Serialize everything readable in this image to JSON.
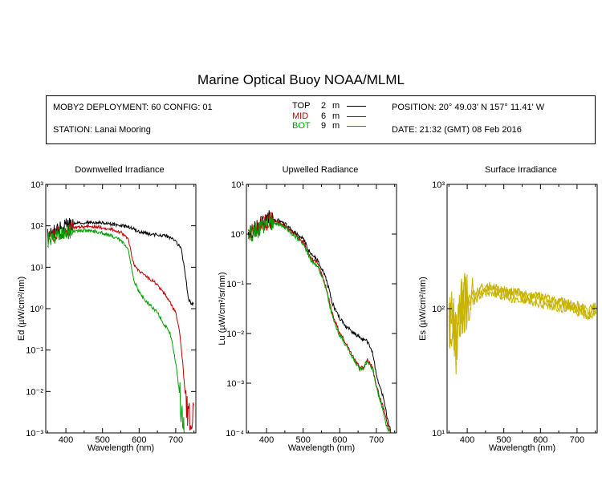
{
  "header": {
    "title": "Marine Optical Buoy NOAA/MLML",
    "deployment": "MOBY2 DEPLOYMENT: 60 CONFIG: 01",
    "station": "STATION: Lanai Mooring",
    "position": "POSITION: 20° 49.03' N   157° 11.41' W",
    "date": "DATE: 21:32 (GMT) 08 Feb 2016",
    "legend": [
      {
        "name": "TOP",
        "depth": "2",
        "unit": "m",
        "color": "#000000"
      },
      {
        "name": "MID",
        "depth": "6",
        "unit": "m",
        "color": "#c00000"
      },
      {
        "name": "BOT",
        "depth": "9",
        "unit": "m",
        "color": "#00a000"
      }
    ]
  },
  "chart_data": [
    {
      "type": "line",
      "title": "Downwelled Irradiance",
      "xlabel": "Wavelength (nm)",
      "ylabel": "Ed (µW/cm²/nm)",
      "yscale": "log",
      "xlim": [
        345,
        755
      ],
      "ylim": [
        0.001,
        1000
      ],
      "xticks": [
        400,
        500,
        600,
        700
      ],
      "ytick_labels": [
        "10⁻³",
        "10⁻²",
        "10⁻¹",
        "10⁰",
        "10¹",
        "10²",
        "10³"
      ],
      "series": [
        {
          "name": "TOP",
          "color": "#000000",
          "x": [
            350,
            370,
            400,
            430,
            460,
            490,
            520,
            550,
            580,
            600,
            620,
            650,
            680,
            700,
            715,
            725,
            735,
            745,
            750
          ],
          "y": [
            60,
            75,
            100,
            115,
            120,
            120,
            112,
            102,
            90,
            72,
            65,
            60,
            55,
            42,
            28,
            8,
            1.6,
            1.3,
            1.3
          ]
        },
        {
          "name": "MID",
          "color": "#c00000",
          "x": [
            350,
            370,
            400,
            430,
            460,
            490,
            520,
            550,
            570,
            585,
            600,
            620,
            650,
            670,
            685,
            700,
            710,
            720,
            730,
            740,
            750
          ],
          "y": [
            50,
            62,
            80,
            92,
            98,
            93,
            85,
            70,
            48,
            12,
            8,
            6,
            3.8,
            2.2,
            1.4,
            0.8,
            0.3,
            0.04,
            0.003,
            0.002,
            0.002
          ]
        },
        {
          "name": "BOT",
          "color": "#00a000",
          "x": [
            350,
            370,
            400,
            430,
            460,
            490,
            520,
            550,
            570,
            585,
            600,
            620,
            650,
            670,
            685,
            700,
            710,
            720,
            725
          ],
          "y": [
            45,
            55,
            68,
            75,
            78,
            70,
            60,
            45,
            28,
            5,
            2.5,
            1.5,
            0.8,
            0.4,
            0.25,
            0.05,
            0.01,
            0.002,
            0.001
          ]
        }
      ]
    },
    {
      "type": "line",
      "title": "Upwelled Radiance",
      "xlabel": "Wavelength (nm)",
      "ylabel": "Lu (µW/cm²/sr/nm)",
      "yscale": "log",
      "xlim": [
        345,
        755
      ],
      "ylim": [
        0.0001,
        10
      ],
      "xticks": [
        400,
        500,
        600,
        700
      ],
      "ytick_labels": [
        "10⁻⁴",
        "10⁻³",
        "10⁻²",
        "10⁻¹",
        "10⁰",
        "10¹"
      ],
      "series": [
        {
          "name": "TOP",
          "color": "#000000",
          "x": [
            350,
            370,
            390,
            405,
            420,
            440,
            460,
            480,
            500,
            520,
            540,
            560,
            580,
            600,
            620,
            640,
            660,
            675,
            690,
            700,
            710,
            720,
            730,
            740
          ],
          "y": [
            1.1,
            1.3,
            1.6,
            2.1,
            2.0,
            1.8,
            1.4,
            1.0,
            0.8,
            0.4,
            0.3,
            0.15,
            0.04,
            0.02,
            0.013,
            0.01,
            0.008,
            0.007,
            0.004,
            0.0015,
            0.0008,
            0.0005,
            0.0002,
            0.0001
          ]
        },
        {
          "name": "MID",
          "color": "#c00000",
          "x": [
            350,
            370,
            390,
            405,
            420,
            440,
            460,
            480,
            500,
            520,
            540,
            560,
            580,
            600,
            620,
            640,
            655,
            665,
            675,
            690,
            700,
            710,
            720,
            730,
            740
          ],
          "y": [
            1.0,
            1.2,
            1.5,
            1.9,
            1.8,
            1.6,
            1.25,
            0.9,
            0.7,
            0.33,
            0.25,
            0.1,
            0.025,
            0.01,
            0.006,
            0.003,
            0.002,
            0.0022,
            0.003,
            0.002,
            0.0009,
            0.0005,
            0.0003,
            0.00015,
            0.0001
          ]
        },
        {
          "name": "BOT",
          "color": "#00a000",
          "x": [
            350,
            370,
            390,
            405,
            420,
            440,
            460,
            480,
            500,
            520,
            540,
            560,
            580,
            600,
            620,
            640,
            655,
            665,
            675,
            690,
            700,
            710,
            720,
            730,
            740
          ],
          "y": [
            0.95,
            1.15,
            1.45,
            1.8,
            1.7,
            1.5,
            1.2,
            0.85,
            0.65,
            0.3,
            0.22,
            0.09,
            0.022,
            0.009,
            0.0055,
            0.0028,
            0.0019,
            0.002,
            0.0028,
            0.0019,
            0.0008,
            0.00045,
            0.00025,
            0.00012,
            0.0001
          ]
        }
      ]
    },
    {
      "type": "line",
      "title": "Surface Irradiance",
      "xlabel": "Wavelength (nm)",
      "ylabel": "Es (µW/cm²/nm)",
      "yscale": "log",
      "xlim": [
        345,
        755
      ],
      "ylim": [
        10,
        1000
      ],
      "xticks": [
        400,
        500,
        600,
        700
      ],
      "ytick_labels": [
        "10¹",
        "10²",
        "10³"
      ],
      "series": [
        {
          "name": "",
          "color": "#c8b400",
          "x": [
            350,
            360,
            370,
            380,
            390,
            400,
            420,
            440,
            460,
            480,
            500,
            530,
            560,
            600,
            640,
            680,
            700,
            720,
            730,
            740,
            750
          ],
          "y": [
            70,
            85,
            50,
            95,
            110,
            120,
            125,
            140,
            145,
            140,
            135,
            128,
            125,
            118,
            110,
            105,
            100,
            95,
            90,
            96,
            98
          ]
        }
      ]
    }
  ]
}
